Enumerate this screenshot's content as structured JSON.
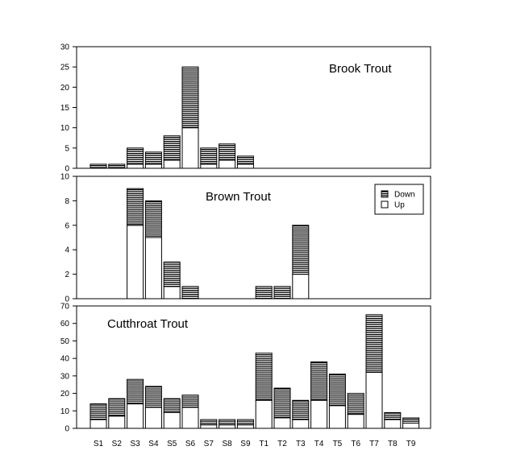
{
  "chart_data": [
    {
      "type": "bar",
      "stacked": true,
      "title": "Brook Trout",
      "categories": [
        "S1",
        "S2",
        "S3",
        "S4",
        "S5",
        "S6",
        "S7",
        "S8",
        "S9",
        "T1",
        "T2",
        "T3",
        "T4",
        "T5",
        "T6",
        "T7",
        "T8",
        "T9"
      ],
      "series": [
        {
          "name": "Up",
          "values": [
            0,
            0,
            1,
            1,
            2,
            10,
            1,
            2,
            1,
            0,
            0,
            0,
            0,
            0,
            0,
            0,
            0,
            0
          ]
        },
        {
          "name": "Down",
          "values": [
            1,
            1,
            4,
            3,
            6,
            15,
            4,
            4,
            2,
            0,
            0,
            0,
            0,
            0,
            0,
            0,
            0,
            0
          ]
        }
      ],
      "ylim": [
        0,
        30
      ],
      "yticks": [
        0,
        5,
        10,
        15,
        20,
        25,
        30
      ]
    },
    {
      "type": "bar",
      "stacked": true,
      "title": "Brown Trout",
      "categories": [
        "S1",
        "S2",
        "S3",
        "S4",
        "S5",
        "S6",
        "S7",
        "S8",
        "S9",
        "T1",
        "T2",
        "T3",
        "T4",
        "T5",
        "T6",
        "T7",
        "T8",
        "T9"
      ],
      "series": [
        {
          "name": "Up",
          "values": [
            0,
            0,
            6,
            5,
            1,
            0,
            0,
            0,
            0,
            0,
            0,
            2,
            0,
            0,
            0,
            0,
            0,
            0
          ]
        },
        {
          "name": "Down",
          "values": [
            0,
            0,
            3,
            3,
            2,
            1,
            0,
            0,
            0,
            1,
            1,
            4,
            0,
            0,
            0,
            0,
            0,
            0
          ]
        }
      ],
      "ylim": [
        0,
        10
      ],
      "yticks": [
        0,
        2,
        4,
        6,
        8,
        10
      ],
      "legend": {
        "position": "top-right",
        "entries": [
          "Down",
          "Up"
        ]
      }
    },
    {
      "type": "bar",
      "stacked": true,
      "title": "Cutthroat Trout",
      "categories": [
        "S1",
        "S2",
        "S3",
        "S4",
        "S5",
        "S6",
        "S7",
        "S8",
        "S9",
        "T1",
        "T2",
        "T3",
        "T4",
        "T5",
        "T6",
        "T7",
        "T8",
        "T9"
      ],
      "series": [
        {
          "name": "Up",
          "values": [
            5,
            7,
            14,
            12,
            9,
            12,
            2,
            2,
            2,
            16,
            6,
            5,
            16,
            13,
            8,
            32,
            5,
            3
          ]
        },
        {
          "name": "Down",
          "values": [
            9,
            10,
            14,
            12,
            8,
            7,
            3,
            3,
            3,
            27,
            17,
            11,
            22,
            18,
            12,
            33,
            4,
            3
          ]
        }
      ],
      "ylim": [
        0,
        70
      ],
      "yticks": [
        0,
        10,
        20,
        30,
        40,
        50,
        60,
        70
      ]
    }
  ],
  "styles": {
    "up_fill": "#ffffff",
    "down_fill": "hatched-horizontal-black",
    "stroke": "#000000",
    "background": "#ffffff"
  }
}
